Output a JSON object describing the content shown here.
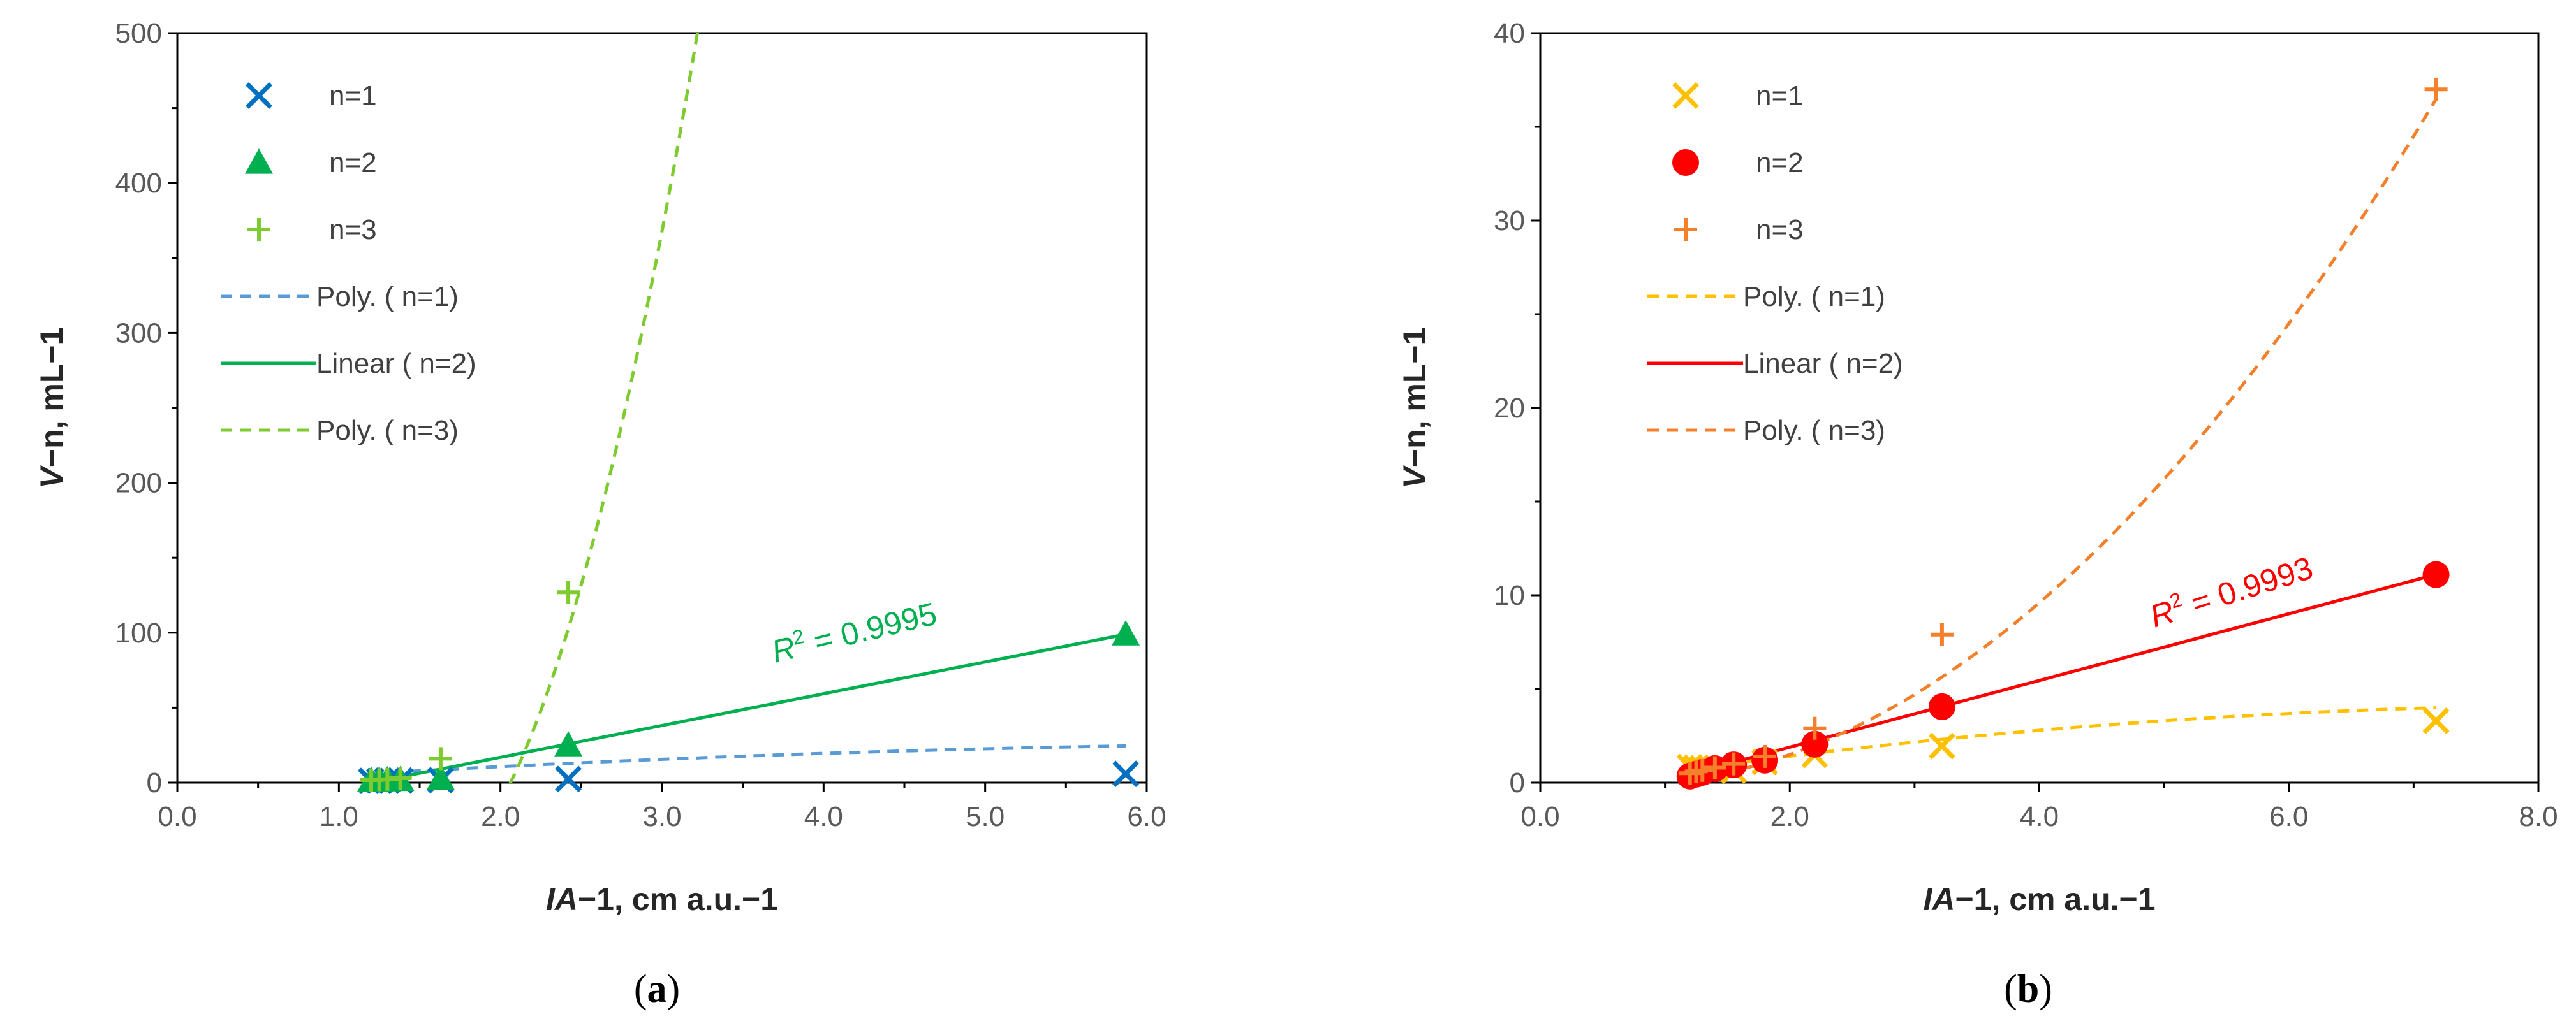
{
  "chart_data": [
    {
      "type": "scatter",
      "panel_label": "(a)",
      "panel_letter": "a",
      "xlabel": "IA−1, cm a.u.−1",
      "xlabel_italic": "IA",
      "xlabel_rest": "−1, cm a.u.−1",
      "ylabel": "V−n, mL−1",
      "ylabel_italic": "V",
      "ylabel_rest": "−n, mL−1",
      "xlim": [
        0,
        6
      ],
      "ylim": [
        0,
        500
      ],
      "xticks": [
        "0.0",
        "1.0",
        "2.0",
        "3.0",
        "4.0",
        "5.0",
        "6.0"
      ],
      "yticks": [
        "0",
        "100",
        "200",
        "300",
        "400",
        "500"
      ],
      "legend_position": "top-left",
      "series": [
        {
          "name": "n=1",
          "marker": "x",
          "color": "#0070C0",
          "x": [
            1.2,
            1.25,
            1.3,
            1.38,
            1.63,
            2.42,
            5.87
          ],
          "y": [
            1.2,
            1.25,
            1.3,
            1.38,
            1.63,
            2.42,
            5.87
          ]
        },
        {
          "name": "n=2",
          "marker": "triangle",
          "color": "#00B050",
          "x": [
            1.2,
            1.25,
            1.3,
            1.38,
            1.63,
            2.42,
            5.87
          ],
          "y": [
            1.44,
            1.56,
            1.69,
            1.9,
            2.66,
            25.0,
            99.0
          ]
        },
        {
          "name": "n=3",
          "marker": "plus",
          "color": "#7DCB2F",
          "x": [
            1.2,
            1.25,
            1.3,
            1.38,
            1.63,
            2.42
          ],
          "y": [
            1.7,
            1.95,
            2.2,
            3.0,
            16.0,
            127.0
          ]
        }
      ],
      "trendlines": [
        {
          "name": "Poly. ( n=1)",
          "style": "dashed",
          "color": "#5B9BD5",
          "x_range": [
            1.2,
            5.87
          ],
          "coeffs": [
            -1.7,
            7.1,
            -0.45
          ]
        },
        {
          "name": "Linear ( n=2)",
          "style": "solid",
          "color": "#00B050",
          "x_range": [
            1.2,
            5.87
          ],
          "coeffs": [
            -25.5,
            21.2,
            0
          ]
        },
        {
          "name": "Poly. ( n=3)",
          "style": "dashed",
          "color": "#7DCB2F",
          "x_range": [
            1.2,
            3.63
          ],
          "coeffs": [
            317.0,
            -529.0,
            182.0
          ]
        }
      ],
      "annotation": {
        "text_prefix": "R",
        "superscript": "2",
        "text_suffix": " = 0.9995",
        "color": "#00B050",
        "text": "R² = 0.9995"
      }
    },
    {
      "type": "scatter",
      "panel_label": "(b)",
      "panel_letter": "b",
      "xlabel": "IA−1, cm a.u.−1",
      "xlabel_italic": "IA",
      "xlabel_rest": "−1, cm a.u.−1",
      "ylabel": "V−n, mL−1",
      "ylabel_italic": "V",
      "ylabel_rest": "−n, mL−1",
      "xlim": [
        0,
        8
      ],
      "ylim": [
        0,
        40
      ],
      "xticks": [
        "0.0",
        "2.0",
        "4.0",
        "6.0",
        "8.0"
      ],
      "yticks": [
        "0",
        "10",
        "20",
        "30",
        "40"
      ],
      "legend_position": "top-left",
      "series": [
        {
          "name": "n=1",
          "marker": "x",
          "color": "#FFC000",
          "x": [
            1.2,
            1.25,
            1.3,
            1.4,
            1.55,
            1.8,
            2.2,
            3.22,
            7.18
          ],
          "y": [
            0.83,
            0.8,
            0.77,
            0.71,
            0.65,
            1.1,
            1.48,
            1.95,
            3.3
          ]
        },
        {
          "name": "n=2",
          "marker": "circle",
          "color": "#FF0000",
          "x": [
            1.2,
            1.25,
            1.3,
            1.4,
            1.55,
            1.8,
            2.2,
            3.22,
            7.18
          ],
          "y": [
            0.35,
            0.45,
            0.55,
            0.75,
            0.95,
            1.2,
            2.05,
            4.05,
            11.1
          ]
        },
        {
          "name": "n=3",
          "marker": "plus",
          "color": "#F4802C",
          "x": [
            1.2,
            1.25,
            1.3,
            1.4,
            1.55,
            1.8,
            2.2,
            3.22,
            7.18
          ],
          "y": [
            0.5,
            0.6,
            0.65,
            0.8,
            1.0,
            1.4,
            2.9,
            7.9,
            37.0
          ]
        }
      ],
      "trendlines": [
        {
          "name": "Poly. ( n=1)",
          "style": "dashed",
          "color": "#FFC000",
          "x_range": [
            1.2,
            7.18
          ],
          "coeffs": [
            -0.45,
            1.05,
            -0.06
          ]
        },
        {
          "name": "Linear ( n=2)",
          "style": "solid",
          "color": "#FF0000",
          "x_range": [
            1.2,
            7.18
          ],
          "coeffs": [
            -1.67,
            1.78,
            0
          ]
        },
        {
          "name": "Poly. ( n=3)",
          "style": "dashed",
          "color": "#F4802C",
          "x_range": [
            1.2,
            7.18
          ],
          "coeffs": [
            0.2,
            -1.05,
            0.85
          ]
        }
      ],
      "annotation": {
        "text_prefix": "R",
        "superscript": "2",
        "text_suffix": " = 0.9993",
        "color": "#FF0000",
        "text": "R² = 0.9993"
      }
    }
  ]
}
